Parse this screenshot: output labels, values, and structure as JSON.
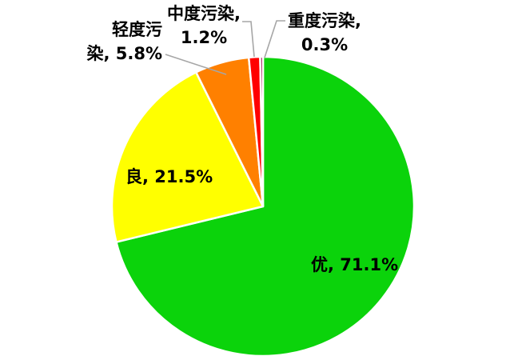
{
  "chart_data": {
    "type": "pie",
    "title": "",
    "unit": "%",
    "start_angle_deg": 0,
    "direction": "clockwise",
    "background": "#FFFFFF",
    "label_color": "#000000",
    "leader_line_color": "#A6A6A6",
    "slice_border_color": "#FFFFFF",
    "slices": [
      {
        "label": "优",
        "value": 71.1,
        "color": "#0BD30B",
        "label_text": "优, 71.1%",
        "label_placement": "inside",
        "lines": [
          "优, 71.1%"
        ]
      },
      {
        "label": "良",
        "value": 21.5,
        "color": "#FFFF00",
        "label_text": "良, 21.5%",
        "label_placement": "inside",
        "lines": [
          "良, 21.5%"
        ]
      },
      {
        "label": "轻度污染",
        "value": 5.8,
        "color": "#FF8000",
        "label_text": "轻度污染, 5.8%",
        "label_placement": "outside",
        "lines": [
          "轻度污",
          "染, 5.8%"
        ]
      },
      {
        "label": "中度污染",
        "value": 1.2,
        "color": "#FF0000",
        "label_text": "中度污染, 1.2%",
        "label_placement": "outside",
        "lines": [
          "中度污染,",
          "1.2%"
        ]
      },
      {
        "label": "重度污染",
        "value": 0.3,
        "color": "#99004C",
        "label_text": "重度污染, 0.3%",
        "label_placement": "outside",
        "lines": [
          "重度污染,",
          "0.3%"
        ]
      }
    ]
  }
}
